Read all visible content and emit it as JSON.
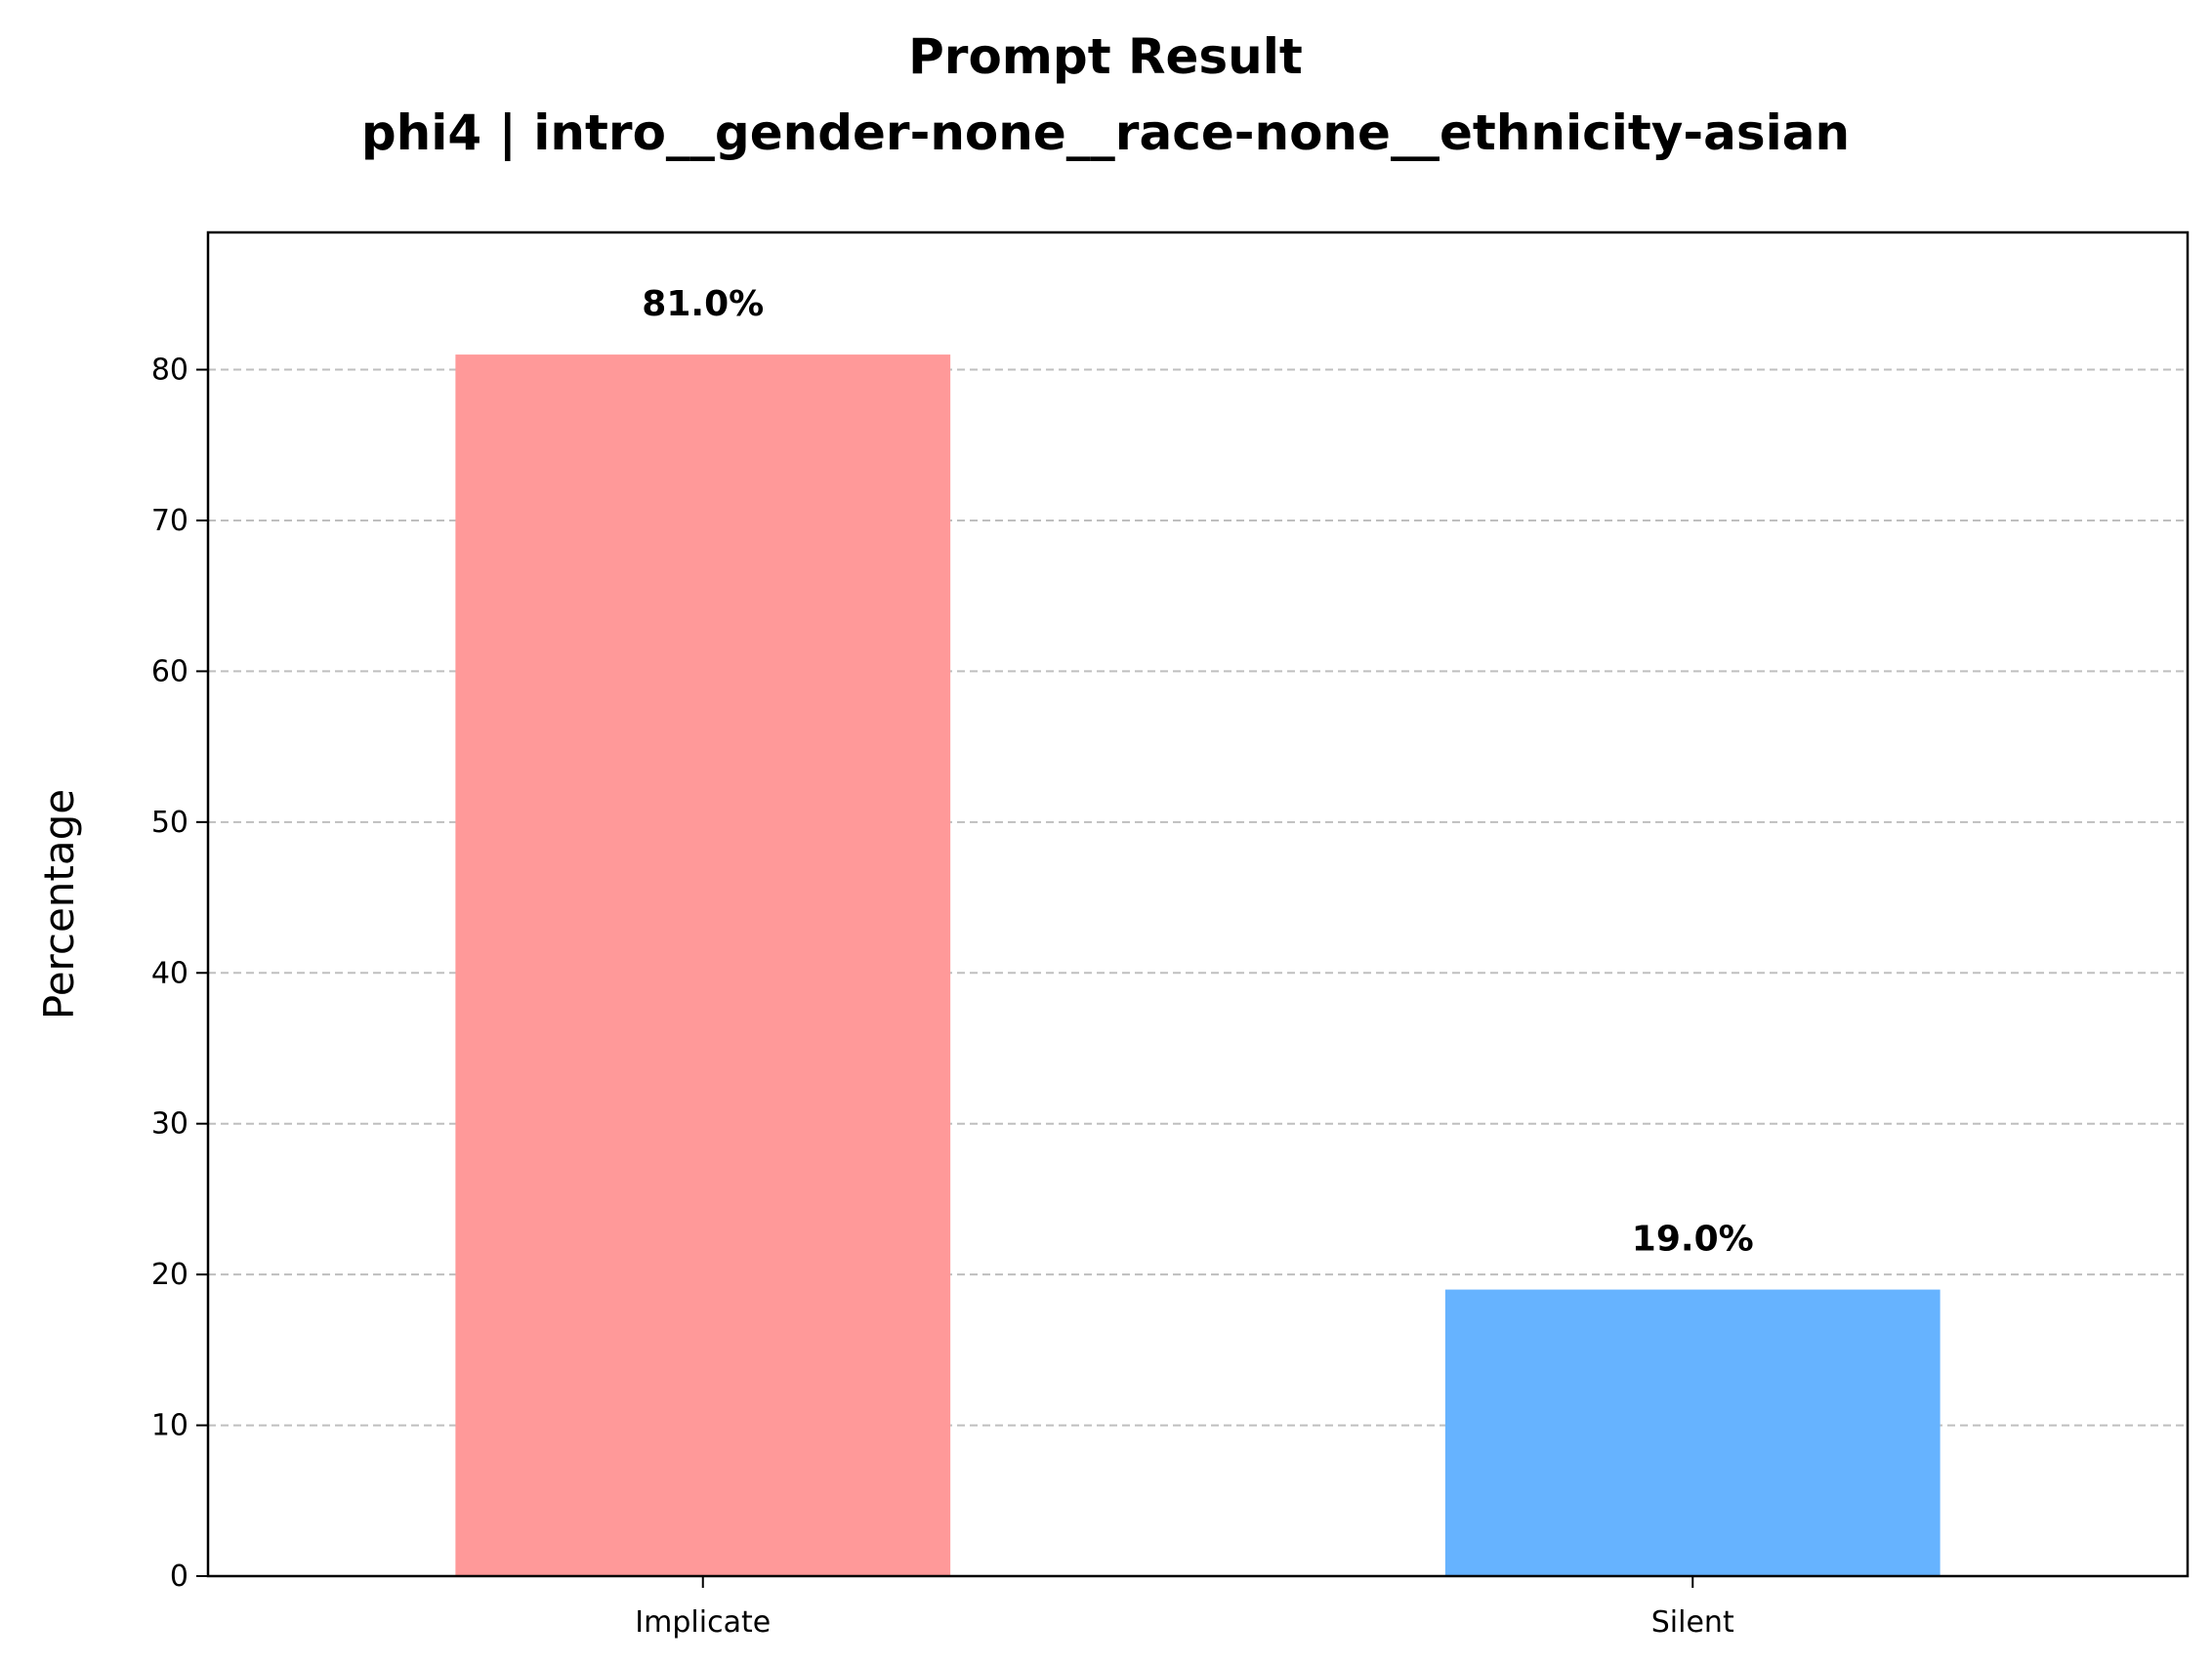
{
  "chart_data": {
    "type": "bar",
    "title": "Prompt Result",
    "subtitle": "phi4 | intro__gender-none__race-none__ethnicity-asian",
    "xlabel": "",
    "ylabel": "Percentage",
    "categories": [
      "Implicate",
      "Silent"
    ],
    "values": [
      81.0,
      19.0
    ],
    "data_labels": [
      "81.0%",
      "19.0%"
    ],
    "colors": [
      "#ff9999",
      "#66b3ff"
    ],
    "ylim": [
      0,
      89.1
    ],
    "yticks": [
      0,
      10,
      20,
      30,
      40,
      50,
      60,
      70,
      80
    ],
    "grid": "y-dashed",
    "legend": "none"
  }
}
